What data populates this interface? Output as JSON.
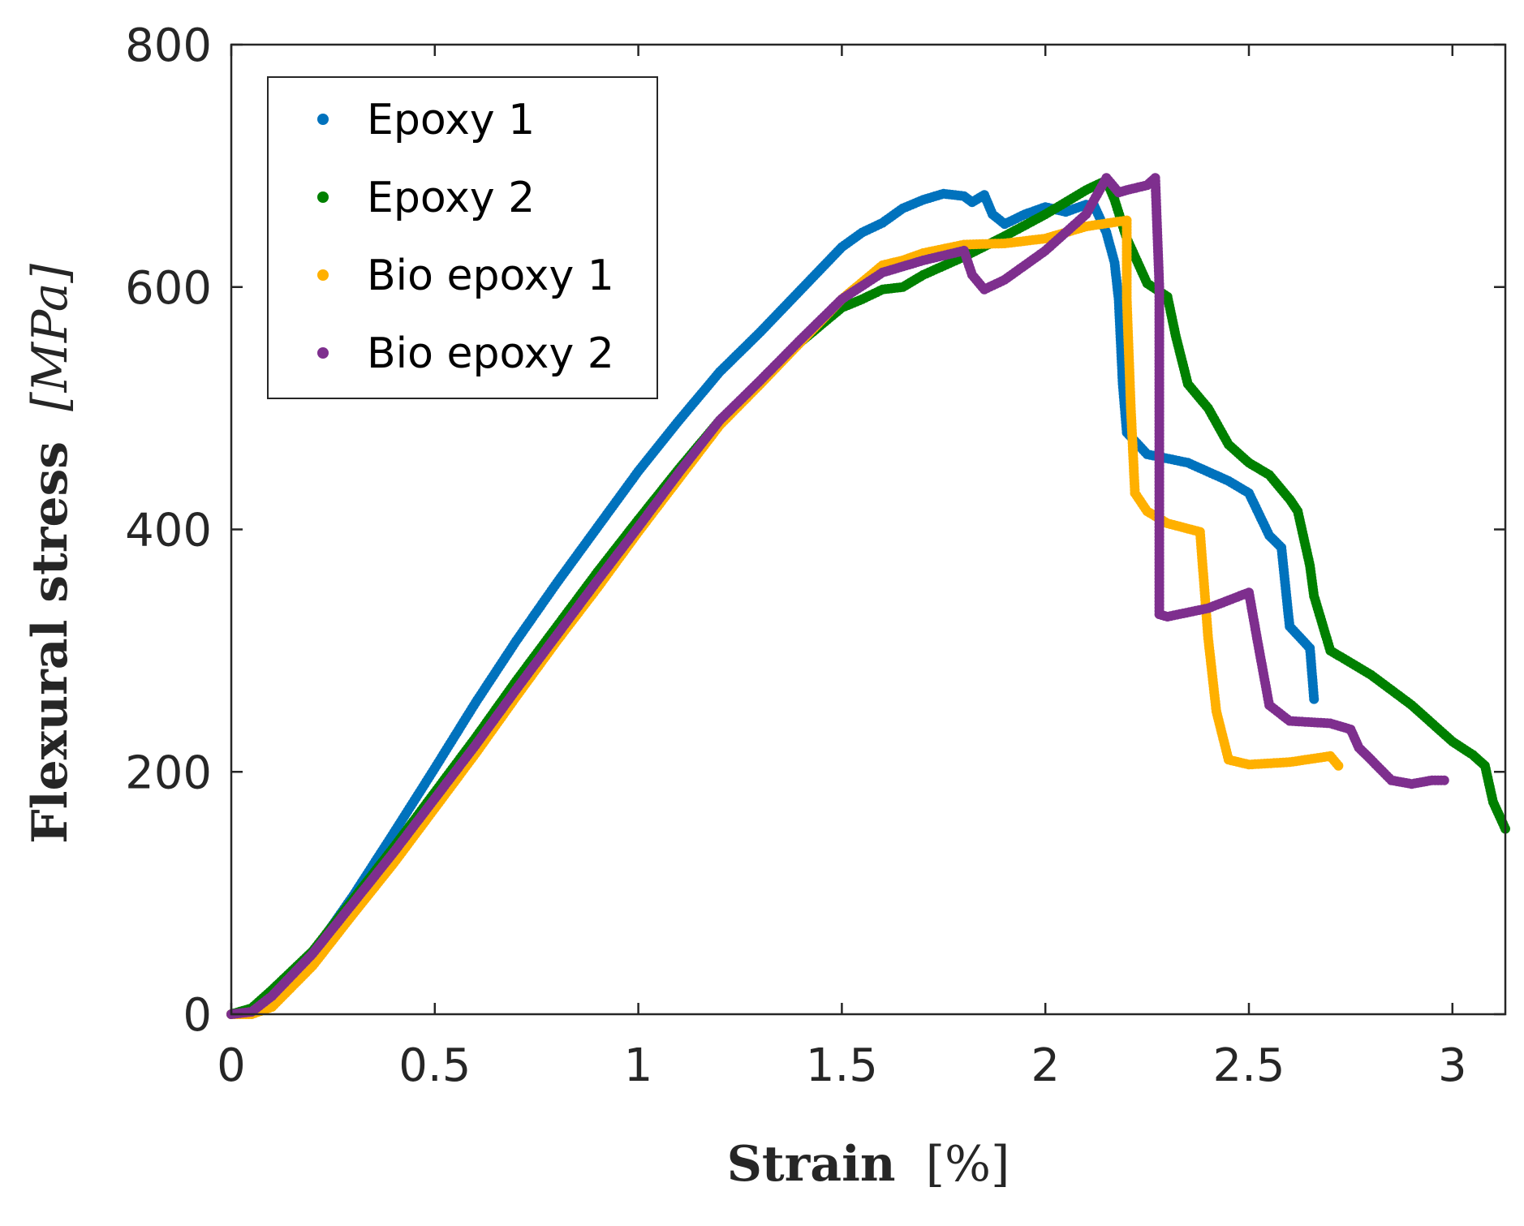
{
  "chart_data": {
    "type": "scatter",
    "title": "",
    "xlabel_bold": "Strain",
    "xlabel_unit": "[%]",
    "ylabel_bold": "Flexural stress",
    "ylabel_unit": "[MPa]",
    "xlim": [
      0,
      3.13
    ],
    "ylim": [
      0,
      800
    ],
    "xticks": [
      0,
      0.5,
      1,
      1.5,
      2,
      2.5,
      3
    ],
    "xtick_labels": [
      "0",
      "0.5",
      "1",
      "1.5",
      "2",
      "2.5",
      "3"
    ],
    "yticks": [
      0,
      200,
      400,
      600,
      800
    ],
    "ytick_labels": [
      "0",
      "200",
      "400",
      "600",
      "800"
    ],
    "legend_position": "top-left",
    "series": [
      {
        "name": "Epoxy 1",
        "color": "#0072BD",
        "points": [
          [
            0,
            0
          ],
          [
            0.05,
            3
          ],
          [
            0.1,
            15
          ],
          [
            0.2,
            50
          ],
          [
            0.3,
            98
          ],
          [
            0.4,
            150
          ],
          [
            0.5,
            203
          ],
          [
            0.6,
            257
          ],
          [
            0.7,
            308
          ],
          [
            0.8,
            356
          ],
          [
            0.9,
            402
          ],
          [
            1.0,
            448
          ],
          [
            1.1,
            490
          ],
          [
            1.2,
            530
          ],
          [
            1.3,
            563
          ],
          [
            1.4,
            598
          ],
          [
            1.5,
            633
          ],
          [
            1.55,
            645
          ],
          [
            1.6,
            653
          ],
          [
            1.65,
            665
          ],
          [
            1.7,
            672
          ],
          [
            1.75,
            677
          ],
          [
            1.8,
            675
          ],
          [
            1.82,
            670
          ],
          [
            1.85,
            676
          ],
          [
            1.87,
            660
          ],
          [
            1.9,
            652
          ],
          [
            1.95,
            660
          ],
          [
            2.0,
            666
          ],
          [
            2.05,
            662
          ],
          [
            2.1,
            668
          ],
          [
            2.12,
            667
          ],
          [
            2.15,
            645
          ],
          [
            2.17,
            620
          ],
          [
            2.18,
            590
          ],
          [
            2.19,
            520
          ],
          [
            2.2,
            480
          ],
          [
            2.25,
            462
          ],
          [
            2.35,
            455
          ],
          [
            2.45,
            440
          ],
          [
            2.5,
            430
          ],
          [
            2.55,
            395
          ],
          [
            2.58,
            385
          ],
          [
            2.6,
            320
          ],
          [
            2.65,
            302
          ],
          [
            2.66,
            260
          ]
        ]
      },
      {
        "name": "Epoxy 2",
        "color": "#008000",
        "points": [
          [
            0,
            0
          ],
          [
            0.05,
            5
          ],
          [
            0.1,
            20
          ],
          [
            0.2,
            52
          ],
          [
            0.3,
            95
          ],
          [
            0.4,
            138
          ],
          [
            0.5,
            183
          ],
          [
            0.6,
            228
          ],
          [
            0.7,
            275
          ],
          [
            0.8,
            320
          ],
          [
            0.9,
            365
          ],
          [
            1.0,
            408
          ],
          [
            1.1,
            450
          ],
          [
            1.2,
            490
          ],
          [
            1.3,
            522
          ],
          [
            1.4,
            555
          ],
          [
            1.5,
            583
          ],
          [
            1.55,
            590
          ],
          [
            1.6,
            598
          ],
          [
            1.65,
            600
          ],
          [
            1.7,
            610
          ],
          [
            1.8,
            625
          ],
          [
            1.9,
            642
          ],
          [
            2.0,
            660
          ],
          [
            2.1,
            680
          ],
          [
            2.15,
            688
          ],
          [
            2.17,
            672
          ],
          [
            2.2,
            640
          ],
          [
            2.25,
            603
          ],
          [
            2.3,
            592
          ],
          [
            2.32,
            560
          ],
          [
            2.35,
            520
          ],
          [
            2.4,
            500
          ],
          [
            2.45,
            470
          ],
          [
            2.5,
            455
          ],
          [
            2.55,
            445
          ],
          [
            2.6,
            425
          ],
          [
            2.62,
            415
          ],
          [
            2.65,
            370
          ],
          [
            2.66,
            345
          ],
          [
            2.7,
            300
          ],
          [
            2.8,
            280
          ],
          [
            2.9,
            255
          ],
          [
            3.0,
            225
          ],
          [
            3.05,
            214
          ],
          [
            3.08,
            205
          ],
          [
            3.1,
            175
          ],
          [
            3.13,
            153
          ]
        ]
      },
      {
        "name": "Bio epoxy 1",
        "color": "#FFB000",
        "points": [
          [
            0,
            0
          ],
          [
            0.05,
            0
          ],
          [
            0.1,
            6
          ],
          [
            0.2,
            40
          ],
          [
            0.3,
            83
          ],
          [
            0.4,
            125
          ],
          [
            0.5,
            170
          ],
          [
            0.6,
            215
          ],
          [
            0.7,
            262
          ],
          [
            0.8,
            308
          ],
          [
            0.9,
            352
          ],
          [
            1.0,
            398
          ],
          [
            1.1,
            442
          ],
          [
            1.2,
            486
          ],
          [
            1.3,
            520
          ],
          [
            1.4,
            555
          ],
          [
            1.5,
            590
          ],
          [
            1.6,
            618
          ],
          [
            1.65,
            622
          ],
          [
            1.7,
            628
          ],
          [
            1.8,
            635
          ],
          [
            1.9,
            636
          ],
          [
            2.0,
            640
          ],
          [
            2.1,
            650
          ],
          [
            2.2,
            655
          ],
          [
            2.2,
            590
          ],
          [
            2.21,
            500
          ],
          [
            2.22,
            430
          ],
          [
            2.25,
            415
          ],
          [
            2.3,
            405
          ],
          [
            2.38,
            398
          ],
          [
            2.4,
            310
          ],
          [
            2.42,
            250
          ],
          [
            2.45,
            210
          ],
          [
            2.5,
            206
          ],
          [
            2.6,
            208
          ],
          [
            2.7,
            213
          ],
          [
            2.72,
            205
          ]
        ]
      },
      {
        "name": "Bio epoxy 2",
        "color": "#7E2F8E",
        "points": [
          [
            0,
            0
          ],
          [
            0.05,
            2
          ],
          [
            0.1,
            15
          ],
          [
            0.2,
            50
          ],
          [
            0.3,
            92
          ],
          [
            0.4,
            134
          ],
          [
            0.5,
            178
          ],
          [
            0.6,
            222
          ],
          [
            0.7,
            268
          ],
          [
            0.8,
            313
          ],
          [
            0.9,
            358
          ],
          [
            1.0,
            402
          ],
          [
            1.1,
            447
          ],
          [
            1.2,
            490
          ],
          [
            1.3,
            523
          ],
          [
            1.4,
            557
          ],
          [
            1.5,
            590
          ],
          [
            1.6,
            612
          ],
          [
            1.7,
            622
          ],
          [
            1.8,
            630
          ],
          [
            1.82,
            610
          ],
          [
            1.85,
            598
          ],
          [
            1.9,
            606
          ],
          [
            2.0,
            630
          ],
          [
            2.1,
            660
          ],
          [
            2.15,
            690
          ],
          [
            2.18,
            678
          ],
          [
            2.2,
            680
          ],
          [
            2.25,
            684
          ],
          [
            2.27,
            690
          ],
          [
            2.28,
            600
          ],
          [
            2.28,
            450
          ],
          [
            2.28,
            330
          ],
          [
            2.3,
            328
          ],
          [
            2.4,
            335
          ],
          [
            2.5,
            348
          ],
          [
            2.52,
            310
          ],
          [
            2.55,
            255
          ],
          [
            2.6,
            242
          ],
          [
            2.7,
            240
          ],
          [
            2.75,
            235
          ],
          [
            2.77,
            220
          ],
          [
            2.8,
            210
          ],
          [
            2.85,
            193
          ],
          [
            2.9,
            190
          ],
          [
            2.95,
            193
          ],
          [
            2.98,
            193
          ]
        ]
      }
    ]
  }
}
